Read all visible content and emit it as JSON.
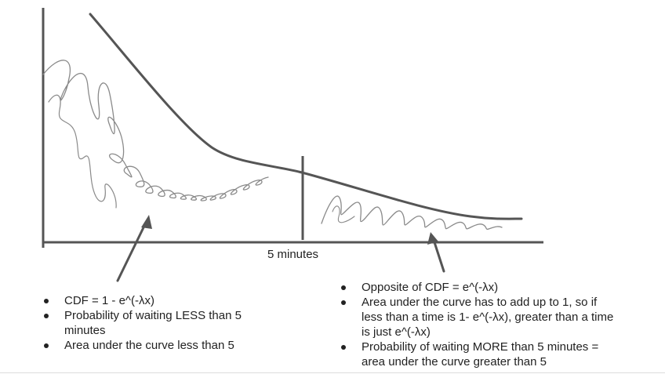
{
  "diagram": {
    "x_marker_label": "5 minutes",
    "left_notes": [
      "CDF = 1 - e^(-λx)",
      "Probability of waiting LESS than 5 minutes",
      "Area under the curve less than 5"
    ],
    "right_notes": [
      "Opposite of CDF = e^(-λx)",
      "Area under the curve has to add up to 1, so if less than a time is 1- e^(-λx), greater than a time is just e^(-λx)",
      "Probability of waiting MORE than 5 minutes = area under the curve greater than 5"
    ],
    "colors": {
      "curve": "#555555",
      "scribble": "#8a8a8a",
      "axis": "#555555",
      "text": "#222222"
    }
  }
}
